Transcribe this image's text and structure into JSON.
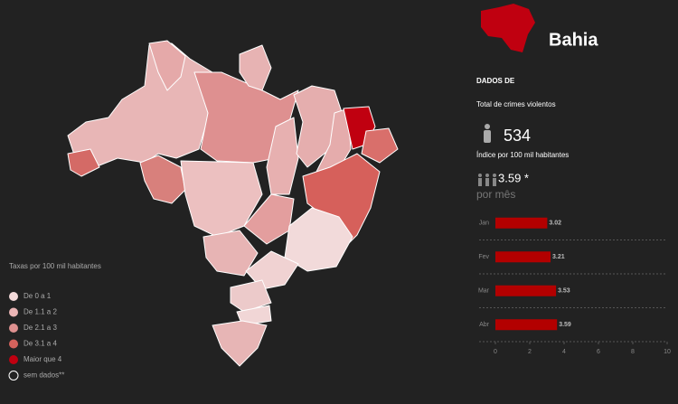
{
  "panel": {
    "state": "Bahia",
    "section": "DADOS DE",
    "total_label": "Total de crimes violentos",
    "total_value": "534",
    "index_label": "Índice por 100 mil habitantes",
    "index_value": "3.59 *",
    "period": "por mês"
  },
  "legend": {
    "title": "Taxas por 100 mil habitantes",
    "items": [
      "De 0 a 1",
      "De 1.1 a 2",
      "De 2.1 a 3",
      "De 3.1 a 4",
      "Maior que 4",
      "sem dados**"
    ],
    "colors": [
      "#f4dada",
      "#eab4b4",
      "#df9190",
      "#d4625c",
      "#c00010",
      "none"
    ]
  },
  "chart_data": {
    "type": "hbar",
    "categories": [
      "Jan",
      "Fev",
      "Mar",
      "Abr"
    ],
    "values": [
      3.02,
      3.21,
      3.53,
      3.59
    ],
    "color": "#b30000",
    "xlim": [
      0,
      10
    ],
    "xticks": [
      0,
      2,
      4,
      6,
      8,
      10
    ]
  }
}
